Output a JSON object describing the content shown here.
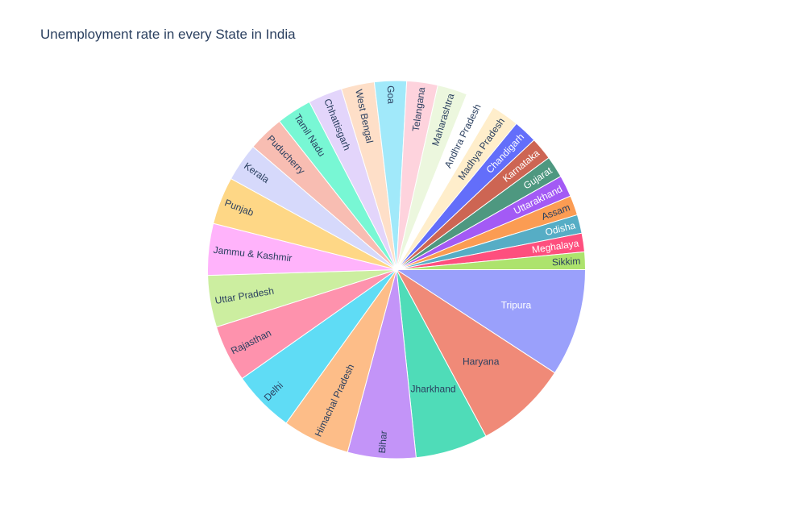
{
  "chart_data": {
    "type": "pie",
    "title": "Unemployment rate in every State in India",
    "sort": "descending clockwise from 3 o'clock",
    "slices": [
      {
        "label": "Tripura",
        "value": 10.4,
        "color": "#9aa0fb",
        "text_color": "#ffffff"
      },
      {
        "label": "Haryana",
        "value": 9.0,
        "color": "#f08a78",
        "text_color": "#2a3f5f"
      },
      {
        "label": "Jharkhand",
        "value": 7.0,
        "color": "#4fdcb8",
        "text_color": "#2a3f5f"
      },
      {
        "label": "Bihar",
        "value": 6.6,
        "color": "#c394f8",
        "text_color": "#2a3f5f"
      },
      {
        "label": "Himachal Pradesh",
        "value": 6.5,
        "color": "#fdbd88",
        "text_color": "#2a3f5f"
      },
      {
        "label": "Delhi",
        "value": 6.0,
        "color": "#5fdcf5",
        "text_color": "#2a3f5f"
      },
      {
        "label": "Rajasthan",
        "value": 5.5,
        "color": "#fe92ad",
        "text_color": "#2a3f5f"
      },
      {
        "label": "Uttar Pradesh",
        "value": 5.0,
        "color": "#cceea0",
        "text_color": "#2a3f5f"
      },
      {
        "label": "Jammu & Kashmir",
        "value": 5.0,
        "color": "#ffb3fb",
        "text_color": "#2a3f5f"
      },
      {
        "label": "Punjab",
        "value": 4.6,
        "color": "#fed786",
        "text_color": "#2a3f5f"
      },
      {
        "label": "Kerala",
        "value": 3.7,
        "color": "#d6d9fb",
        "text_color": "#2a3f5f"
      },
      {
        "label": "Puducherry",
        "value": 3.5,
        "color": "#f8bdb2",
        "text_color": "#2a3f5f"
      },
      {
        "label": "Tamil Nadu",
        "value": 3.4,
        "color": "#78f7d4",
        "text_color": "#2a3f5f"
      },
      {
        "label": "Chhattisgarh",
        "value": 3.3,
        "color": "#e3d5fb",
        "text_color": "#2a3f5f"
      },
      {
        "label": "West Bengal",
        "value": 3.2,
        "color": "#fedfc8",
        "text_color": "#2a3f5f"
      },
      {
        "label": "Goa",
        "value": 3.1,
        "color": "#a1e9fa",
        "text_color": "#2a3f5f"
      },
      {
        "label": "Telangana",
        "value": 3.0,
        "color": "#fed3dd",
        "text_color": "#2a3f5f"
      },
      {
        "label": "Maharashtra",
        "value": 2.9,
        "color": "#ecf7de",
        "text_color": "#2a3f5f"
      },
      {
        "label": "Andhra Pradesh",
        "value": 2.8,
        "color": "#ffffff",
        "text_color": "#2a3f5f"
      },
      {
        "label": "Madhya Pradesh",
        "value": 2.7,
        "color": "#ffeecb",
        "text_color": "#2a3f5f"
      },
      {
        "label": "Chandigarh",
        "value": 2.3,
        "color": "#636efa",
        "text_color": "#ffffff"
      },
      {
        "label": "Karnataka",
        "value": 2.2,
        "color": "#cd6553",
        "text_color": "#ffffff"
      },
      {
        "label": "Gujarat",
        "value": 2.1,
        "color": "#4e9880",
        "text_color": "#ffffff"
      },
      {
        "label": "Uttarakhand",
        "value": 2.1,
        "color": "#a35af5",
        "text_color": "#ffffff"
      },
      {
        "label": "Assam",
        "value": 1.9,
        "color": "#fb9c53",
        "text_color": "#2a3f5f"
      },
      {
        "label": "Odisha",
        "value": 1.8,
        "color": "#56adc5",
        "text_color": "#ffffff"
      },
      {
        "label": "Meghalaya",
        "value": 1.8,
        "color": "#fe4f7e",
        "text_color": "#ffffff"
      },
      {
        "label": "Sikkim",
        "value": 1.7,
        "color": "#ade36d",
        "text_color": "#2a3f5f"
      }
    ]
  }
}
